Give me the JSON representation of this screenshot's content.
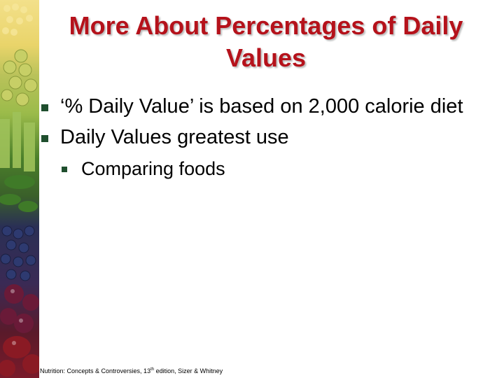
{
  "slide": {
    "title": "More About Percentages of Daily Values",
    "bullets": [
      "‘% Daily Value’ is based on 2,000 calorie diet",
      "Daily Values greatest use"
    ],
    "sub_bullets": [
      "Comparing foods"
    ],
    "footer": {
      "pre": "Nutrition: Concepts & Controversies, 13",
      "sup": "th",
      "post": " edition, Sizer & Whitney"
    }
  },
  "colors": {
    "title": "#b5121b",
    "bullet": "#1f4f2e"
  },
  "decoration": "produce-photo-strip"
}
